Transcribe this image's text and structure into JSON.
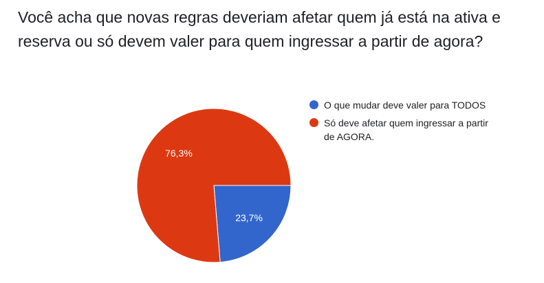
{
  "question": {
    "title": "Você acha que novas regras deveriam afetar quem já está na ativa e reserva ou só devem valer para quem ingressar a partir de agora?"
  },
  "chart_data": {
    "type": "pie",
    "slices": [
      {
        "name": "O que mudar deve valer para TODOS",
        "value": 23.7,
        "label": "23,7%",
        "color": "#3366cc"
      },
      {
        "name": "Só deve afetar quem ingressar a partir de AGORA.",
        "value": 76.3,
        "label": "76,3%",
        "color": "#dc3912"
      }
    ],
    "start_angle_deg": 90,
    "direction": "clockwise",
    "legend_position": "right"
  }
}
